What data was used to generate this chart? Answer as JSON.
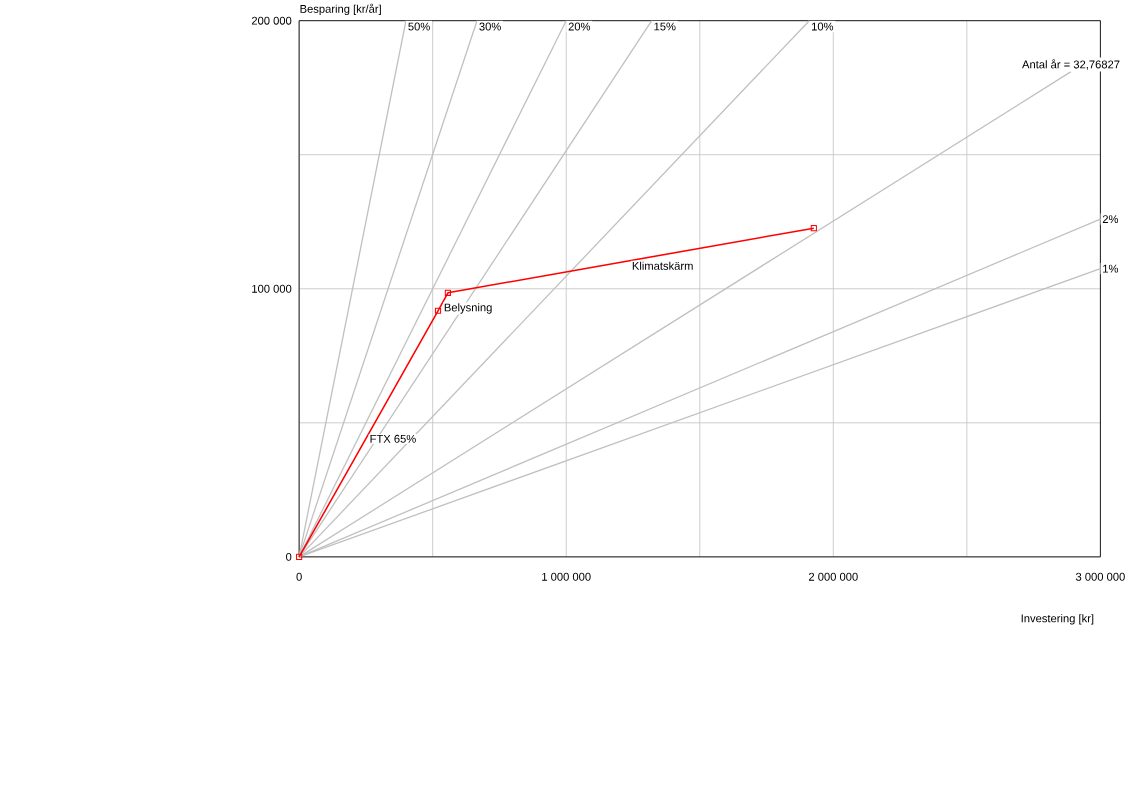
{
  "chart_data": {
    "type": "line",
    "xlabel": "Investering [kr]",
    "ylabel": "Besparing [kr/år]",
    "xlim": [
      0,
      3000000
    ],
    "ylim": [
      0,
      200000
    ],
    "xticks": [
      0,
      {
        "value": 500000,
        "label": null
      },
      {
        "value": 1000000,
        "label": "1 000 000"
      },
      {
        "value": 1500000,
        "label": null
      },
      {
        "value": 2000000,
        "label": "2 000 000"
      },
      {
        "value": 2500000,
        "label": null
      },
      {
        "value": 3000000,
        "label": "3 000 000"
      }
    ],
    "yticks": [
      0,
      {
        "value": 50000,
        "label": null
      },
      {
        "value": 100000,
        "label": "100 000"
      },
      {
        "value": 150000,
        "label": null
      },
      {
        "value": 200000,
        "label": "200 000"
      }
    ],
    "grid": true,
    "marker": "none",
    "line_style": "solid",
    "series": [
      {
        "name": "50%",
        "color": "#c0c0c0",
        "x": [
          0,
          400000
        ],
        "values": [
          0,
          200000
        ]
      },
      {
        "name": "30%",
        "color": "#c0c0c0",
        "x": [
          0,
          666000
        ],
        "values": [
          0,
          200000
        ]
      },
      {
        "name": "20%",
        "color": "#c0c0c0",
        "x": [
          0,
          1000000
        ],
        "values": [
          0,
          200000
        ]
      },
      {
        "name": "15%",
        "color": "#c0c0c0",
        "x": [
          0,
          1320000
        ],
        "values": [
          0,
          200000
        ]
      },
      {
        "name": "10%",
        "color": "#c0c0c0",
        "x": [
          0,
          1910000
        ],
        "values": [
          0,
          200000
        ]
      },
      {
        "name": "Antal år = 32,76827",
        "color": "#c0c0c0",
        "x": [
          0,
          2890000
        ],
        "values": [
          0,
          181000
        ]
      },
      {
        "name": "2%",
        "color": "#c0c0c0",
        "x": [
          0,
          3000000
        ],
        "values": [
          0,
          126000
        ]
      },
      {
        "name": "1%",
        "color": "#c0c0c0",
        "x": [
          0,
          3000000
        ],
        "values": [
          0,
          107500
        ]
      },
      {
        "color": "#ff0000",
        "marker": "square",
        "x": [
          0,
          520000,
          557000,
          1927000
        ],
        "values": [
          0,
          91800,
          98500,
          122600
        ]
      }
    ],
    "annotations": [
      {
        "text": "FTX 65%",
        "x": 260000,
        "y": 45900
      },
      {
        "text": "Belysning",
        "x": 538000,
        "y": 95000
      },
      {
        "text": "Klimatskärm",
        "x": 1242000,
        "y": 110500
      }
    ]
  }
}
